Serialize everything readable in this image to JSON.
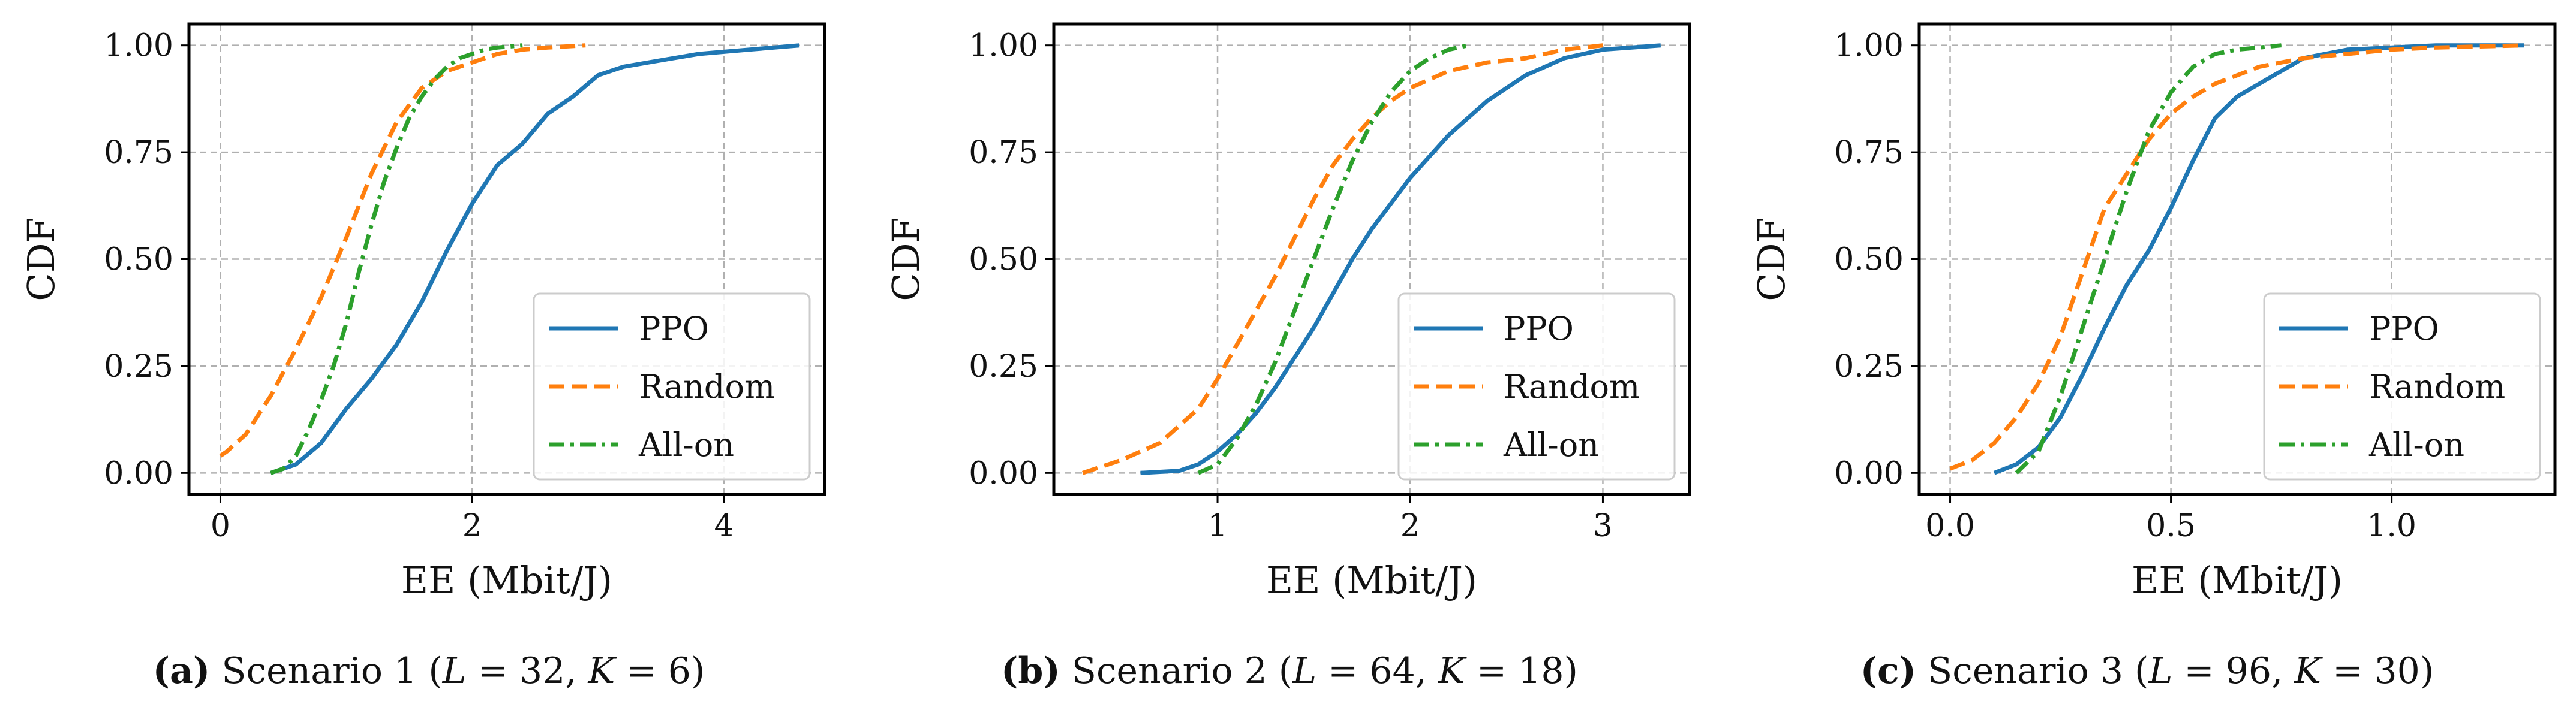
{
  "chart_data": [
    {
      "type": "line",
      "xlabel": "EE (Mbit/J)",
      "ylabel": "CDF",
      "xlim": [
        -0.25,
        4.8
      ],
      "ylim": [
        -0.05,
        1.05
      ],
      "xticks": [
        0,
        2,
        4
      ],
      "xtick_labels": [
        "0",
        "2",
        "4"
      ],
      "yticks": [
        0,
        0.25,
        0.5,
        0.75,
        1
      ],
      "ytick_labels": [
        "0.00",
        "0.25",
        "0.50",
        "0.75",
        "1.00"
      ],
      "grid": true,
      "legend_position": "bottom-right",
      "series": [
        {
          "name": "PPO",
          "color": "#1f77b4",
          "style": "solid",
          "x": [
            0.4,
            0.6,
            0.8,
            1.0,
            1.2,
            1.4,
            1.6,
            1.8,
            2.0,
            2.2,
            2.4,
            2.6,
            2.8,
            3.0,
            3.2,
            3.4,
            3.6,
            3.8,
            4.0,
            4.2,
            4.6
          ],
          "y": [
            0.0,
            0.02,
            0.07,
            0.15,
            0.22,
            0.3,
            0.4,
            0.52,
            0.63,
            0.72,
            0.77,
            0.84,
            0.88,
            0.93,
            0.95,
            0.96,
            0.97,
            0.98,
            0.985,
            0.99,
            1.0
          ]
        },
        {
          "name": "Random",
          "color": "#ff7f0e",
          "style": "dashed",
          "x": [
            0.0,
            0.05,
            0.2,
            0.4,
            0.6,
            0.8,
            1.0,
            1.2,
            1.4,
            1.6,
            1.8,
            2.0,
            2.2,
            2.4,
            2.6,
            2.9
          ],
          "y": [
            0.04,
            0.05,
            0.09,
            0.18,
            0.29,
            0.41,
            0.55,
            0.7,
            0.82,
            0.9,
            0.94,
            0.96,
            0.98,
            0.99,
            0.995,
            1.0
          ]
        },
        {
          "name": "All-on",
          "color": "#2ca02c",
          "style": "dashdot",
          "x": [
            0.4,
            0.5,
            0.6,
            0.7,
            0.8,
            0.9,
            1.0,
            1.1,
            1.2,
            1.3,
            1.4,
            1.5,
            1.6,
            1.7,
            1.8,
            1.9,
            2.0,
            2.1,
            2.2,
            2.4
          ],
          "y": [
            0.0,
            0.01,
            0.04,
            0.1,
            0.17,
            0.25,
            0.35,
            0.47,
            0.58,
            0.68,
            0.76,
            0.83,
            0.88,
            0.92,
            0.95,
            0.97,
            0.98,
            0.99,
            0.995,
            1.0
          ]
        }
      ]
    },
    {
      "type": "line",
      "xlabel": "EE (Mbit/J)",
      "ylabel": "CDF",
      "xlim": [
        0.15,
        3.45
      ],
      "ylim": [
        -0.05,
        1.05
      ],
      "xticks": [
        1,
        2,
        3
      ],
      "xtick_labels": [
        "1",
        "2",
        "3"
      ],
      "yticks": [
        0,
        0.25,
        0.5,
        0.75,
        1
      ],
      "ytick_labels": [
        "0.00",
        "0.25",
        "0.50",
        "0.75",
        "1.00"
      ],
      "grid": true,
      "legend_position": "bottom-right",
      "series": [
        {
          "name": "PPO",
          "color": "#1f77b4",
          "style": "solid",
          "x": [
            0.6,
            0.8,
            0.9,
            1.0,
            1.1,
            1.2,
            1.3,
            1.4,
            1.5,
            1.6,
            1.7,
            1.8,
            1.9,
            2.0,
            2.1,
            2.2,
            2.3,
            2.4,
            2.5,
            2.6,
            2.7,
            2.8,
            3.0,
            3.3
          ],
          "y": [
            0.0,
            0.005,
            0.02,
            0.05,
            0.09,
            0.14,
            0.2,
            0.27,
            0.34,
            0.42,
            0.5,
            0.57,
            0.63,
            0.69,
            0.74,
            0.79,
            0.83,
            0.87,
            0.9,
            0.93,
            0.95,
            0.97,
            0.99,
            1.0
          ]
        },
        {
          "name": "Random",
          "color": "#ff7f0e",
          "style": "dashed",
          "x": [
            0.3,
            0.5,
            0.7,
            0.9,
            1.0,
            1.1,
            1.2,
            1.3,
            1.4,
            1.5,
            1.6,
            1.7,
            1.8,
            1.9,
            2.0,
            2.2,
            2.4,
            2.6,
            2.8,
            3.0
          ],
          "y": [
            0.0,
            0.03,
            0.07,
            0.15,
            0.22,
            0.3,
            0.38,
            0.46,
            0.55,
            0.64,
            0.72,
            0.78,
            0.83,
            0.87,
            0.9,
            0.94,
            0.96,
            0.97,
            0.99,
            1.0
          ]
        },
        {
          "name": "All-on",
          "color": "#2ca02c",
          "style": "dashdot",
          "x": [
            0.9,
            1.0,
            1.1,
            1.2,
            1.3,
            1.4,
            1.5,
            1.6,
            1.7,
            1.8,
            1.9,
            2.0,
            2.1,
            2.2,
            2.3
          ],
          "y": [
            0.0,
            0.02,
            0.08,
            0.16,
            0.26,
            0.38,
            0.5,
            0.62,
            0.73,
            0.82,
            0.89,
            0.94,
            0.97,
            0.99,
            1.0
          ]
        }
      ]
    },
    {
      "type": "line",
      "xlabel": "EE (Mbit/J)",
      "ylabel": "CDF",
      "xlim": [
        -0.07,
        1.37
      ],
      "ylim": [
        -0.05,
        1.05
      ],
      "xticks": [
        0,
        0.5,
        1
      ],
      "xtick_labels": [
        "0.0",
        "0.5",
        "1.0"
      ],
      "yticks": [
        0,
        0.25,
        0.5,
        0.75,
        1
      ],
      "ytick_labels": [
        "0.00",
        "0.25",
        "0.50",
        "0.75",
        "1.00"
      ],
      "grid": true,
      "legend_position": "bottom-right",
      "series": [
        {
          "name": "PPO",
          "color": "#1f77b4",
          "style": "solid",
          "x": [
            0.1,
            0.15,
            0.2,
            0.25,
            0.3,
            0.35,
            0.4,
            0.45,
            0.5,
            0.55,
            0.6,
            0.65,
            0.7,
            0.75,
            0.8,
            0.9,
            1.0,
            1.1,
            1.3
          ],
          "y": [
            0.0,
            0.02,
            0.06,
            0.13,
            0.23,
            0.34,
            0.44,
            0.52,
            0.62,
            0.73,
            0.83,
            0.88,
            0.91,
            0.94,
            0.97,
            0.99,
            0.995,
            1.0,
            1.0
          ]
        },
        {
          "name": "Random",
          "color": "#ff7f0e",
          "style": "dashed",
          "x": [
            0.0,
            0.05,
            0.1,
            0.15,
            0.2,
            0.25,
            0.3,
            0.35,
            0.4,
            0.45,
            0.5,
            0.55,
            0.6,
            0.7,
            0.8,
            0.9,
            1.0,
            1.1,
            1.3
          ],
          "y": [
            0.01,
            0.03,
            0.07,
            0.13,
            0.21,
            0.32,
            0.47,
            0.62,
            0.7,
            0.78,
            0.84,
            0.88,
            0.91,
            0.95,
            0.97,
            0.98,
            0.99,
            0.995,
            1.0
          ]
        },
        {
          "name": "All-on",
          "color": "#2ca02c",
          "style": "dashdot",
          "x": [
            0.15,
            0.2,
            0.25,
            0.3,
            0.35,
            0.4,
            0.45,
            0.5,
            0.55,
            0.6,
            0.65,
            0.7,
            0.75
          ],
          "y": [
            0.0,
            0.05,
            0.18,
            0.34,
            0.5,
            0.66,
            0.8,
            0.89,
            0.95,
            0.98,
            0.99,
            0.995,
            1.0
          ]
        }
      ]
    }
  ],
  "captions": [
    {
      "label": "(a)",
      "text": " Scenario 1 (",
      "v1": "L",
      "eq1": " = 32, ",
      "v2": "K",
      "eq2": " = 6)"
    },
    {
      "label": "(b)",
      "text": " Scenario 2 (",
      "v1": "L",
      "eq1": " = 64, ",
      "v2": "K",
      "eq2": " = 18)"
    },
    {
      "label": "(c)",
      "text": " Scenario 3 (",
      "v1": "L",
      "eq1": " = 96, ",
      "v2": "K",
      "eq2": " = 30)"
    }
  ]
}
